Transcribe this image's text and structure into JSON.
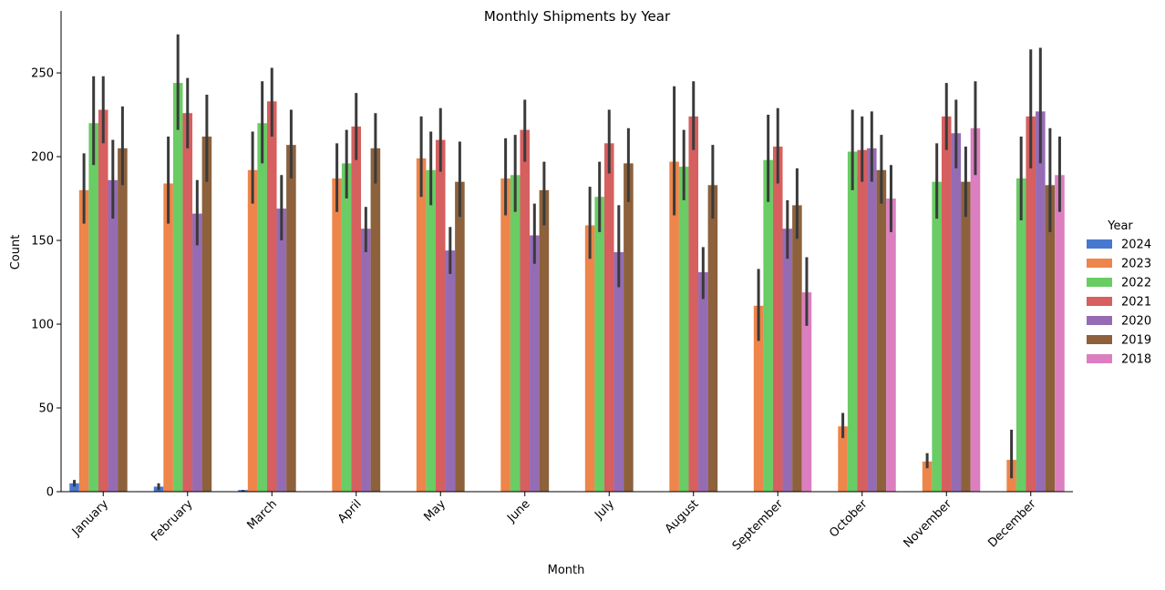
{
  "chart_data": {
    "type": "bar",
    "title": "Monthly Shipments by Year",
    "xlabel": "Month",
    "ylabel": "Count",
    "ylim": [
      0,
      287
    ],
    "yticks": [
      0,
      50,
      100,
      150,
      200,
      250
    ],
    "categories": [
      "January",
      "February",
      "March",
      "April",
      "May",
      "June",
      "July",
      "August",
      "September",
      "October",
      "November",
      "December"
    ],
    "legend": {
      "title": "Year",
      "placement": "right"
    },
    "series": [
      {
        "name": "2024",
        "color": "#4878d0",
        "values": [
          5,
          3,
          1,
          null,
          null,
          null,
          null,
          null,
          null,
          null,
          null,
          null
        ],
        "ci": [
          [
            3,
            7
          ],
          [
            1,
            5
          ],
          [
            0,
            1
          ],
          null,
          null,
          null,
          null,
          null,
          null,
          null,
          null,
          null
        ]
      },
      {
        "name": "2023",
        "color": "#ee854a",
        "values": [
          180,
          184,
          192,
          187,
          199,
          187,
          159,
          197,
          111,
          39,
          18,
          19
        ],
        "ci": [
          [
            160,
            202
          ],
          [
            160,
            212
          ],
          [
            172,
            215
          ],
          [
            167,
            208
          ],
          [
            176,
            224
          ],
          [
            165,
            211
          ],
          [
            139,
            182
          ],
          [
            165,
            242
          ],
          [
            90,
            133
          ],
          [
            32,
            47
          ],
          [
            14,
            23
          ],
          [
            8,
            37
          ]
        ]
      },
      {
        "name": "2022",
        "color": "#6acc64",
        "values": [
          220,
          244,
          220,
          196,
          192,
          189,
          176,
          194,
          198,
          203,
          185,
          187
        ],
        "ci": [
          [
            195,
            248
          ],
          [
            216,
            273
          ],
          [
            196,
            245
          ],
          [
            175,
            216
          ],
          [
            171,
            215
          ],
          [
            167,
            213
          ],
          [
            155,
            197
          ],
          [
            174,
            216
          ],
          [
            173,
            225
          ],
          [
            180,
            228
          ],
          [
            163,
            208
          ],
          [
            162,
            212
          ]
        ]
      },
      {
        "name": "2021",
        "color": "#d65f5f",
        "values": [
          228,
          226,
          233,
          218,
          210,
          216,
          208,
          224,
          206,
          204,
          224,
          224
        ],
        "ci": [
          [
            208,
            248
          ],
          [
            205,
            247
          ],
          [
            212,
            253
          ],
          [
            198,
            238
          ],
          [
            191,
            229
          ],
          [
            197,
            234
          ],
          [
            190,
            228
          ],
          [
            204,
            245
          ],
          [
            184,
            229
          ],
          [
            185,
            224
          ],
          [
            204,
            244
          ],
          [
            193,
            264
          ]
        ]
      },
      {
        "name": "2020",
        "color": "#956cb4",
        "values": [
          186,
          166,
          169,
          157,
          144,
          153,
          143,
          131,
          157,
          205,
          214,
          227
        ],
        "ci": [
          [
            163,
            210
          ],
          [
            147,
            186
          ],
          [
            150,
            189
          ],
          [
            143,
            170
          ],
          [
            130,
            158
          ],
          [
            136,
            172
          ],
          [
            122,
            171
          ],
          [
            115,
            146
          ],
          [
            139,
            174
          ],
          [
            185,
            227
          ],
          [
            193,
            234
          ],
          [
            196,
            265
          ]
        ]
      },
      {
        "name": "2019",
        "color": "#8c613c",
        "values": [
          205,
          212,
          207,
          205,
          185,
          180,
          196,
          183,
          171,
          192,
          185,
          183
        ],
        "ci": [
          [
            183,
            230
          ],
          [
            185,
            237
          ],
          [
            187,
            228
          ],
          [
            184,
            226
          ],
          [
            164,
            209
          ],
          [
            159,
            197
          ],
          [
            173,
            217
          ],
          [
            163,
            207
          ],
          [
            151,
            193
          ],
          [
            172,
            213
          ],
          [
            164,
            206
          ],
          [
            155,
            217
          ]
        ]
      },
      {
        "name": "2018",
        "color": "#dc7ec0",
        "values": [
          null,
          null,
          null,
          null,
          null,
          null,
          null,
          null,
          119,
          175,
          217,
          189
        ],
        "ci": [
          null,
          null,
          null,
          null,
          null,
          null,
          null,
          null,
          [
            99,
            140
          ],
          [
            155,
            195
          ],
          [
            189,
            245
          ],
          [
            167,
            212
          ]
        ]
      }
    ],
    "errorbar_color": "#3a3a3a",
    "grid": false
  }
}
